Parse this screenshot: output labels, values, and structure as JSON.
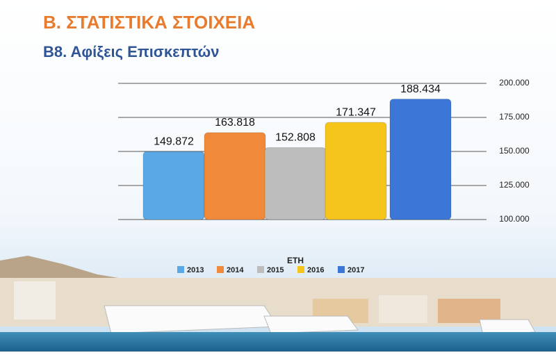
{
  "chart_data": {
    "type": "bar",
    "title": "Β. ΣΤΑΤΙΣΤΙΚΑ ΣΤΟΙΧΕΙΑ",
    "subtitle": "Β8. Αφίξεις Επισκεπτών",
    "legend_title": "ΕΤΗ",
    "series": [
      {
        "name": "2013",
        "color": "#5aa9e6",
        "values": [
          149872
        ],
        "value_labels": [
          "149.872"
        ]
      },
      {
        "name": "2014",
        "color": "#f08a3a",
        "values": [
          163818
        ],
        "value_labels": [
          "163.818"
        ]
      },
      {
        "name": "2015",
        "color": "#bdbdbd",
        "values": [
          152808
        ],
        "value_labels": [
          "152.808"
        ]
      },
      {
        "name": "2016",
        "color": "#f6c51c",
        "values": [
          171347
        ],
        "value_labels": [
          "171.347"
        ]
      },
      {
        "name": "2017",
        "color": "#3c76d6",
        "values": [
          188434
        ],
        "value_labels": [
          "188.434"
        ]
      }
    ],
    "ylim": [
      100000,
      200000
    ],
    "yticks": [
      {
        "value": 100000,
        "label": "100.000"
      },
      {
        "value": 125000,
        "label": "125.000"
      },
      {
        "value": 150000,
        "label": "150.000"
      },
      {
        "value": 175000,
        "label": "175.000"
      },
      {
        "value": 200000,
        "label": "200.000"
      }
    ],
    "grid": true,
    "legend": "bottom"
  }
}
